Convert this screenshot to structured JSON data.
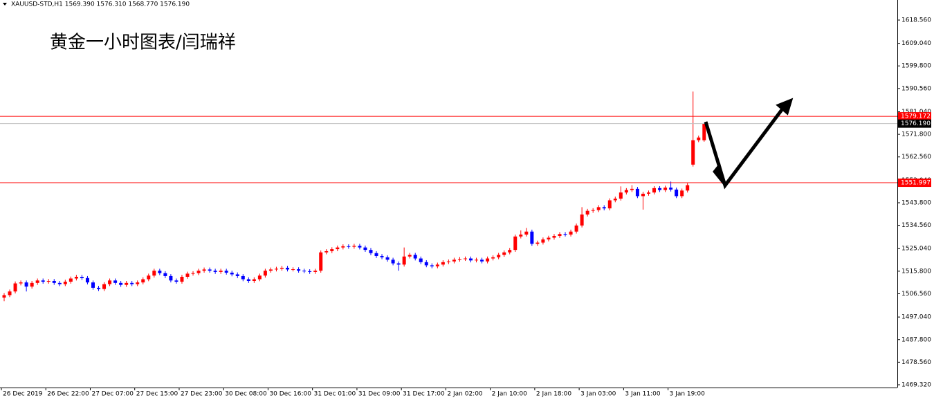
{
  "chart_data": {
    "type": "candlestick",
    "header": "XAUUSD-STD,H1  1569.390 1576.310 1568.770 1576.190",
    "title": "黄金一小时图表/闫瑞祥",
    "categories": [
      "26 Dec 2019",
      null,
      null,
      null,
      null,
      null,
      null,
      null,
      "26 Dec 22:00",
      null,
      null,
      null,
      null,
      null,
      null,
      null,
      "27 Dec 07:00",
      null,
      null,
      null,
      null,
      null,
      null,
      null,
      "27 Dec 15:00",
      null,
      null,
      null,
      null,
      null,
      null,
      null,
      "27 Dec 23:00",
      null,
      null,
      null,
      null,
      null,
      null,
      null,
      "30 Dec 08:00",
      null,
      null,
      null,
      null,
      null,
      null,
      null,
      "30 Dec 16:00",
      null,
      null,
      null,
      null,
      null,
      null,
      null,
      "31 Dec 01:00",
      null,
      null,
      null,
      null,
      null,
      null,
      null,
      "31 Dec 09:00",
      null,
      null,
      null,
      null,
      null,
      null,
      null,
      "31 Dec 17:00",
      null,
      null,
      null,
      null,
      null,
      null,
      null,
      "2 Jan 02:00",
      null,
      null,
      null,
      null,
      null,
      null,
      null,
      "2 Jan 10:00",
      null,
      null,
      null,
      null,
      null,
      null,
      null,
      "2 Jan 18:00",
      null,
      null,
      null,
      null,
      null,
      null,
      null,
      "3 Jan 03:00",
      null,
      null,
      null,
      null,
      null,
      null,
      null,
      "3 Jan 11:00",
      null,
      null,
      null,
      null,
      null,
      null,
      null,
      "3 Jan 19:00",
      null,
      null,
      null,
      null,
      null,
      null
    ],
    "open": [
      1505.0,
      1506.0,
      1507.5,
      1510.8,
      1511.2,
      1509.5,
      1511.0,
      1512.0,
      1511.5,
      1511.8,
      1511.0,
      1510.5,
      1511.5,
      1512.8,
      1513.5,
      1513.0,
      1511.2,
      1509.0,
      1508.5,
      1510.5,
      1512.0,
      1511.0,
      1510.2,
      1511.0,
      1510.5,
      1511.2,
      1512.5,
      1514.0,
      1516.0,
      1515.0,
      1513.8,
      1512.0,
      1511.5,
      1513.5,
      1514.8,
      1515.0,
      1516.0,
      1516.5,
      1516.0,
      1515.5,
      1516.0,
      1515.2,
      1514.5,
      1513.8,
      1512.5,
      1511.8,
      1512.5,
      1514.0,
      1516.0,
      1516.5,
      1516.8,
      1517.2,
      1516.5,
      1516.6,
      1516.0,
      1515.8,
      1515.5,
      1516.0,
      1523.5,
      1524.0,
      1524.8,
      1525.5,
      1526.0,
      1525.8,
      1526.2,
      1525.5,
      1524.5,
      1523.2,
      1522.0,
      1521.5,
      1520.5,
      1519.0,
      1518.5,
      1521.8,
      1522.5,
      1521.0,
      1519.5,
      1518.2,
      1517.8,
      1518.5,
      1519.5,
      1519.8,
      1520.5,
      1520.8,
      1521.0,
      1520.2,
      1520.5,
      1519.8,
      1521.0,
      1521.5,
      1522.5,
      1523.5,
      1524.5,
      1530.0,
      1530.8,
      1532.0,
      1527.0,
      1527.5,
      1528.8,
      1529.5,
      1530.2,
      1531.0,
      1530.8,
      1532.0,
      1534.5,
      1539.0,
      1540.5,
      1540.8,
      1542.0,
      1541.5,
      1544.8,
      1545.5,
      1548.0,
      1549.0,
      1549.5,
      1546.5,
      1547.5,
      1548.0,
      1549.8,
      1549.0,
      1550.0,
      1549.2,
      1546.5,
      1548.8,
      1559.4,
      1569.4,
      1569.39
    ],
    "high": [
      1506.8,
      1508.3,
      1511.6,
      1512.0,
      1512.0,
      1511.8,
      1512.8,
      1512.8,
      1512.6,
      1512.6,
      1511.8,
      1512.3,
      1513.6,
      1514.3,
      1514.3,
      1513.8,
      1512.0,
      1509.8,
      1511.3,
      1512.8,
      1512.8,
      1511.8,
      1511.8,
      1511.8,
      1512.0,
      1513.3,
      1514.8,
      1516.8,
      1516.8,
      1515.8,
      1514.6,
      1512.8,
      1514.3,
      1515.6,
      1515.8,
      1516.8,
      1517.3,
      1517.3,
      1516.8,
      1516.8,
      1516.8,
      1516.0,
      1515.3,
      1514.6,
      1513.3,
      1513.3,
      1514.8,
      1516.8,
      1517.3,
      1517.6,
      1518.0,
      1518.0,
      1517.4,
      1517.4,
      1516.8,
      1516.6,
      1516.8,
      1524.3,
      1524.8,
      1525.6,
      1526.3,
      1526.8,
      1526.8,
      1527.0,
      1527.0,
      1526.3,
      1525.3,
      1524.0,
      1522.8,
      1522.3,
      1521.3,
      1519.8,
      1525.5,
      1523.3,
      1523.3,
      1521.8,
      1520.3,
      1519.0,
      1519.3,
      1520.3,
      1520.6,
      1521.3,
      1521.6,
      1521.8,
      1521.8,
      1521.3,
      1521.3,
      1521.8,
      1522.3,
      1523.3,
      1524.3,
      1525.3,
      1530.8,
      1532.5,
      1533.5,
      1532.8,
      1528.3,
      1529.6,
      1530.3,
      1531.0,
      1531.8,
      1531.8,
      1532.8,
      1535.3,
      1542.0,
      1541.3,
      1541.6,
      1542.8,
      1542.8,
      1545.6,
      1546.3,
      1550.5,
      1549.8,
      1551.0,
      1550.3,
      1548.3,
      1548.8,
      1550.6,
      1550.6,
      1550.8,
      1552.5,
      1550.0,
      1549.6,
      1551.8,
      1589.3,
      1571.3,
      1576.31
    ],
    "low": [
      1503.5,
      1505.2,
      1506.7,
      1510.0,
      1507.5,
      1508.7,
      1510.2,
      1510.7,
      1510.7,
      1510.2,
      1509.7,
      1509.7,
      1510.7,
      1512.0,
      1512.2,
      1510.4,
      1508.2,
      1507.7,
      1507.7,
      1509.7,
      1510.2,
      1509.4,
      1509.4,
      1509.7,
      1509.7,
      1510.4,
      1511.7,
      1513.2,
      1514.2,
      1513.0,
      1511.2,
      1510.7,
      1510.7,
      1512.7,
      1514.0,
      1514.2,
      1515.2,
      1515.2,
      1514.7,
      1514.7,
      1514.4,
      1513.7,
      1513.0,
      1511.7,
      1511.0,
      1511.0,
      1511.7,
      1513.2,
      1515.2,
      1515.7,
      1516.0,
      1515.7,
      1515.7,
      1515.2,
      1515.0,
      1514.7,
      1514.7,
      1515.2,
      1522.7,
      1523.2,
      1524.0,
      1524.7,
      1525.0,
      1525.0,
      1524.7,
      1523.7,
      1522.4,
      1521.2,
      1520.7,
      1519.7,
      1518.2,
      1516.0,
      1517.7,
      1521.0,
      1520.2,
      1518.7,
      1517.4,
      1517.0,
      1517.0,
      1517.7,
      1518.7,
      1519.0,
      1519.7,
      1520.0,
      1519.4,
      1519.4,
      1519.0,
      1519.0,
      1520.2,
      1520.7,
      1521.7,
      1522.7,
      1523.7,
      1529.2,
      1530.0,
      1526.2,
      1526.2,
      1526.7,
      1528.0,
      1528.7,
      1529.4,
      1530.0,
      1530.0,
      1531.2,
      1533.7,
      1538.2,
      1539.7,
      1540.0,
      1540.7,
      1540.7,
      1544.0,
      1544.7,
      1547.2,
      1548.2,
      1545.7,
      1541.0,
      1546.7,
      1547.2,
      1548.2,
      1548.2,
      1548.4,
      1545.7,
      1545.7,
      1548.0,
      1558.6,
      1568.6,
      1568.77
    ],
    "close": [
      1506.0,
      1507.5,
      1510.8,
      1511.2,
      1509.5,
      1511.0,
      1512.0,
      1511.5,
      1511.8,
      1511.0,
      1510.5,
      1511.5,
      1512.8,
      1513.5,
      1513.0,
      1511.2,
      1509.0,
      1508.5,
      1510.5,
      1512.0,
      1511.0,
      1510.2,
      1511.0,
      1510.5,
      1511.2,
      1512.5,
      1514.0,
      1516.0,
      1515.0,
      1513.8,
      1512.0,
      1511.5,
      1513.5,
      1514.8,
      1515.0,
      1516.0,
      1516.5,
      1516.0,
      1515.5,
      1516.0,
      1515.2,
      1514.5,
      1513.8,
      1512.5,
      1511.8,
      1512.5,
      1514.0,
      1516.0,
      1516.5,
      1516.8,
      1517.2,
      1516.5,
      1516.6,
      1516.0,
      1515.8,
      1515.5,
      1516.0,
      1523.5,
      1524.0,
      1524.8,
      1525.5,
      1526.0,
      1525.8,
      1526.2,
      1525.5,
      1524.5,
      1523.2,
      1522.0,
      1521.5,
      1520.5,
      1519.0,
      1518.5,
      1521.8,
      1522.5,
      1521.0,
      1519.5,
      1518.2,
      1517.8,
      1518.5,
      1519.5,
      1519.8,
      1520.5,
      1520.8,
      1521.0,
      1520.2,
      1520.5,
      1519.8,
      1521.0,
      1521.5,
      1522.5,
      1523.5,
      1524.5,
      1530.0,
      1530.8,
      1532.0,
      1527.0,
      1527.5,
      1528.8,
      1529.5,
      1530.2,
      1531.0,
      1530.8,
      1532.0,
      1534.5,
      1539.0,
      1540.5,
      1540.8,
      1542.0,
      1541.5,
      1544.8,
      1545.5,
      1548.0,
      1549.0,
      1549.5,
      1546.5,
      1547.5,
      1548.0,
      1549.8,
      1549.0,
      1550.0,
      1549.2,
      1546.5,
      1548.8,
      1551.0,
      1569.4,
      1570.5,
      1576.19
    ],
    "up_color": "#ff0000",
    "down_color": "#0000ff",
    "ylim": [
      1468.19,
      1626.77
    ],
    "yticks": [
      {
        "value": 1469.32,
        "label": "1469.320"
      },
      {
        "value": 1478.56,
        "label": "1478.560"
      },
      {
        "value": 1487.8,
        "label": "1487.800"
      },
      {
        "value": 1497.04,
        "label": "1497.040"
      },
      {
        "value": 1506.56,
        "label": "1506.560"
      },
      {
        "value": 1515.8,
        "label": "1515.800"
      },
      {
        "value": 1525.04,
        "label": "1525.040"
      },
      {
        "value": 1534.56,
        "label": "1534.560"
      },
      {
        "value": 1543.8,
        "label": "1543.800"
      },
      {
        "value": 1553.04,
        "label": "1553.040"
      },
      {
        "value": 1562.56,
        "label": "1562.560"
      },
      {
        "value": 1571.8,
        "label": "1571.800"
      },
      {
        "value": 1581.04,
        "label": "1581.040"
      },
      {
        "value": 1590.56,
        "label": "1590.560"
      },
      {
        "value": 1599.8,
        "label": "1599.800"
      },
      {
        "value": 1609.04,
        "label": "1609.040"
      },
      {
        "value": 1618.56,
        "label": "1618.560"
      }
    ],
    "levels": [
      1579.172,
      1551.997
    ],
    "level_color": "#ff0000",
    "bid": {
      "value": 1576.19,
      "label": "1576.190"
    },
    "bid_color": "#c0c0c0"
  }
}
